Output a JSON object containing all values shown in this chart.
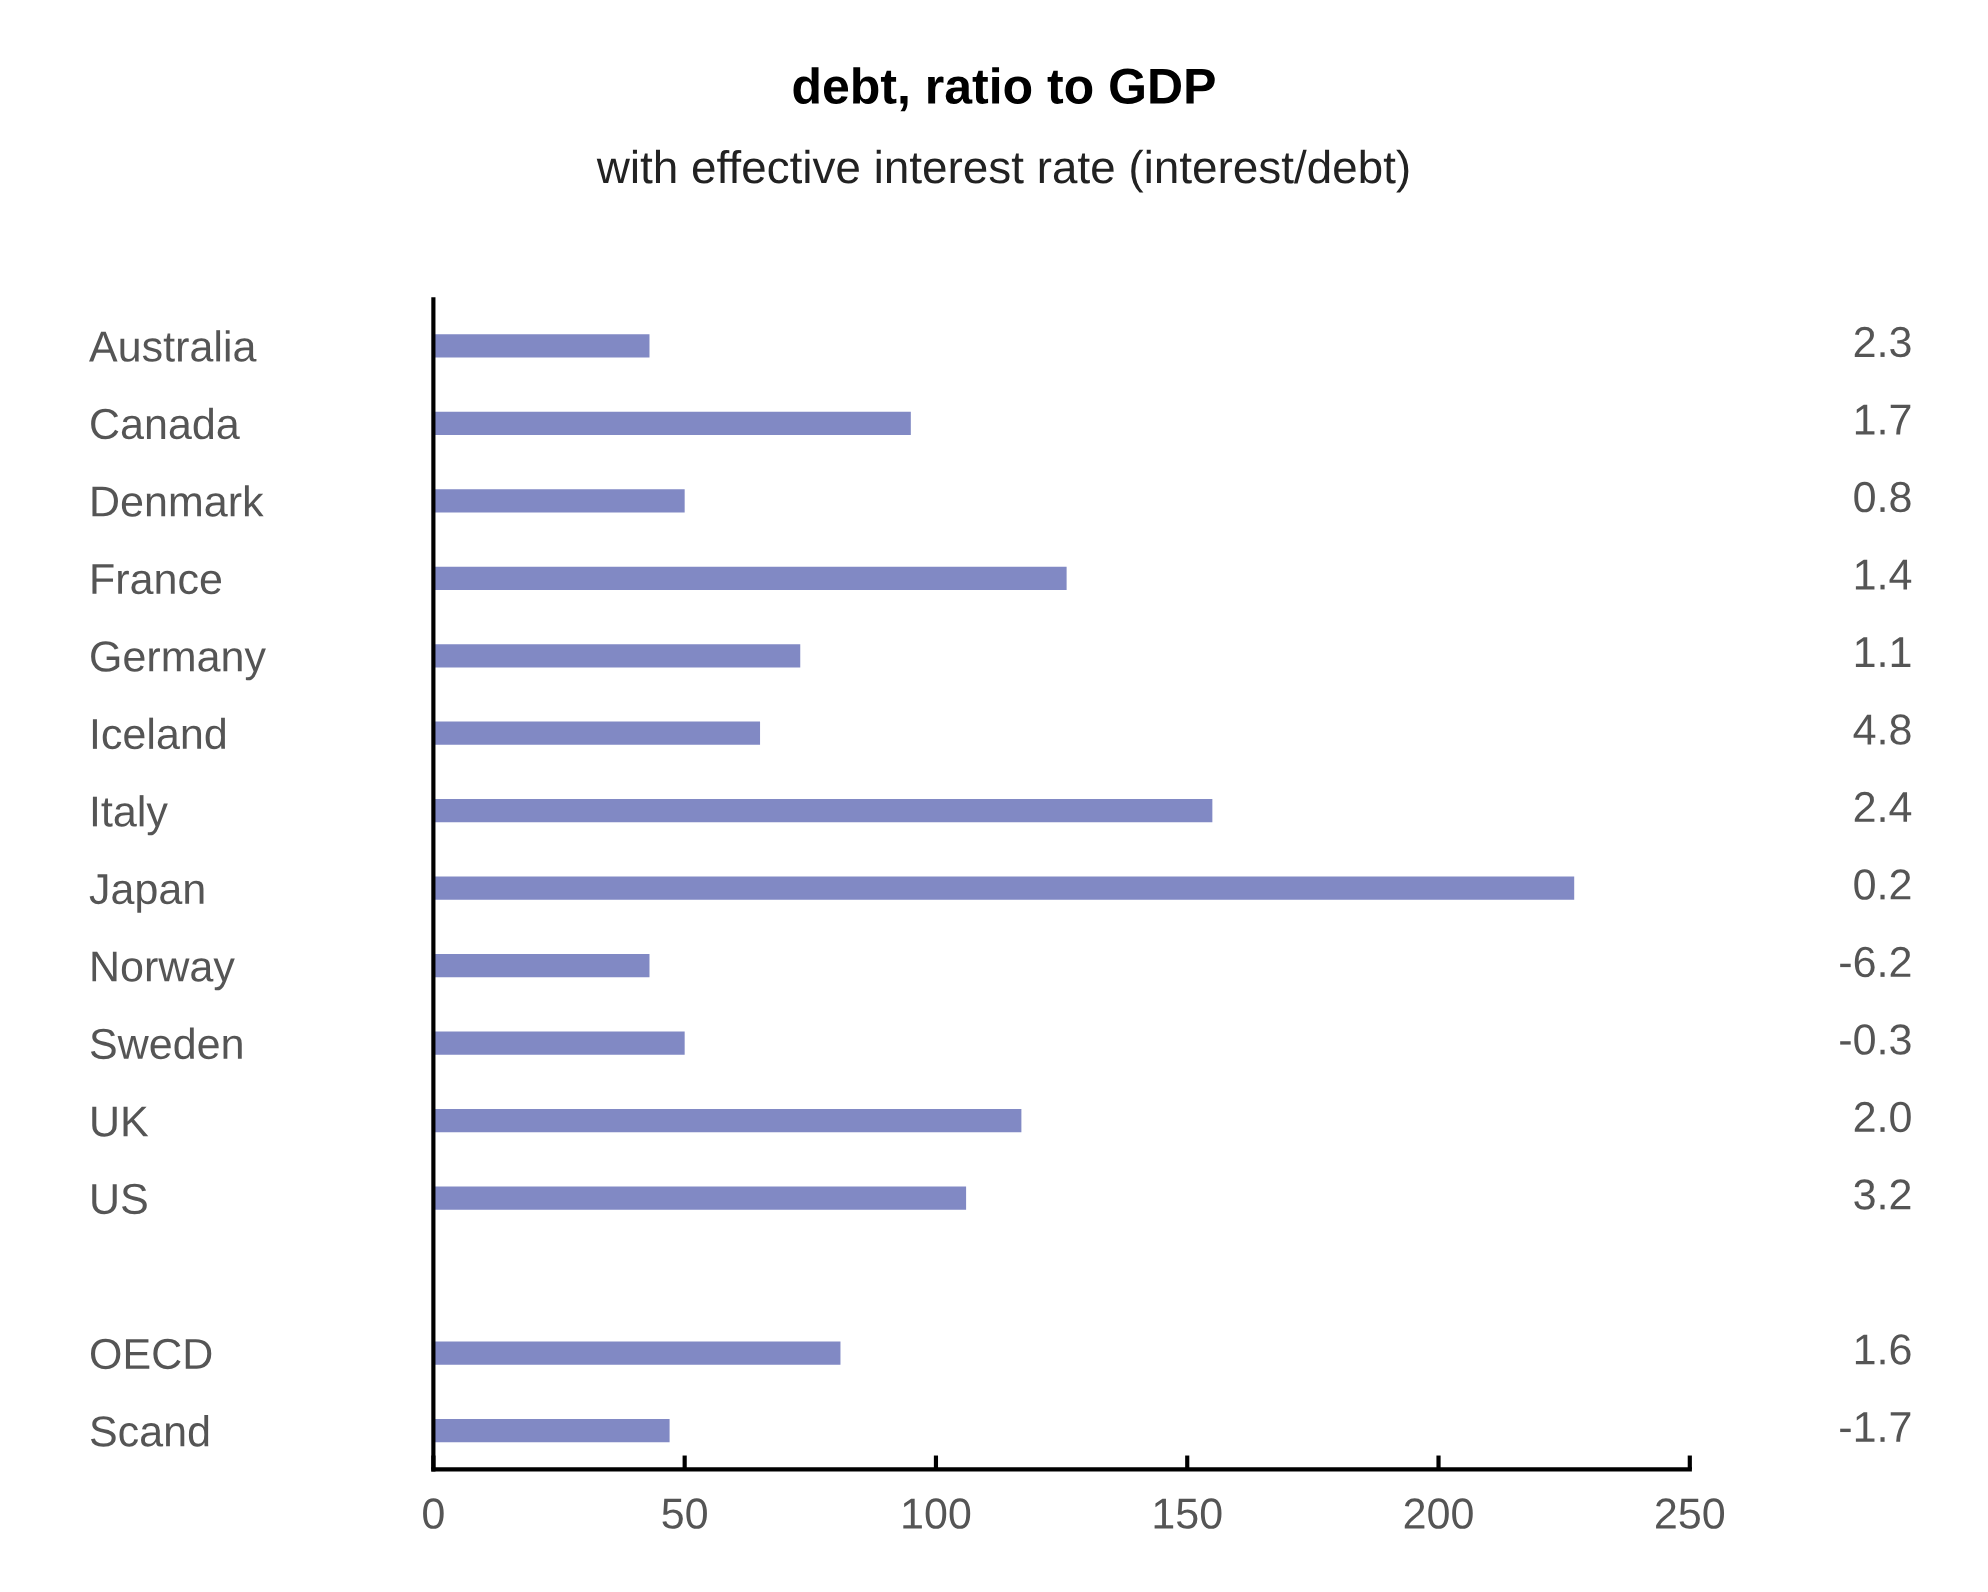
{
  "chart_data": {
    "type": "bar",
    "orientation": "horizontal",
    "title": "debt, ratio to GDP",
    "subtitle": "with effective interest rate (interest/debt)",
    "categories": [
      "Australia",
      "Canada",
      "Denmark",
      "France",
      "Germany",
      "Iceland",
      "Italy",
      "Japan",
      "Norway",
      "Sweden",
      "UK",
      "US",
      null,
      "OECD",
      "Scand"
    ],
    "values": [
      43,
      95,
      50,
      126,
      73,
      65,
      155,
      227,
      43,
      50,
      117,
      106,
      null,
      81,
      47
    ],
    "color": "#8189c4",
    "xlim": [
      0,
      250
    ],
    "xticks": [
      0,
      50,
      100,
      150,
      200,
      250
    ],
    "grid": false,
    "annotations": [
      "2.3",
      "1.7",
      "0.8",
      "1.4",
      "1.1",
      "4.8",
      "2.4",
      "0.2",
      "-6.2",
      "-0.3",
      "2.0",
      "3.2",
      "1.6",
      "-1.7"
    ]
  }
}
